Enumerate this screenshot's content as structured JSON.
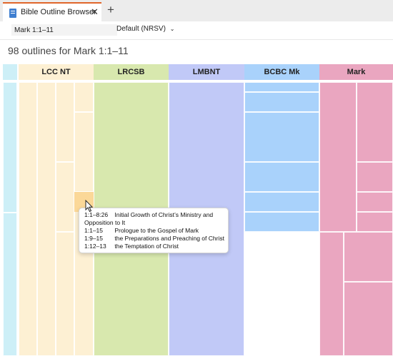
{
  "tabs": {
    "title": "Bible Outline Browser",
    "close_icon": "close-icon",
    "add_icon": "plus-icon",
    "accent": "#e0662a"
  },
  "toolbar": {
    "reference_value": "Mark 1:1–11",
    "version_value": "Default (NRSV)"
  },
  "heading": "98 outlines for Mark 1:1–11",
  "columns": [
    {
      "label": "",
      "color": "#cdeff7"
    },
    {
      "label": "LCC NT",
      "color": "#fdf0d3"
    },
    {
      "label": "LRCSB",
      "color": "#d8e8ae"
    },
    {
      "label": "LMBNT",
      "color": "#c1c9f7"
    },
    {
      "label": "BCBC Mk",
      "color": "#a9d2fb"
    },
    {
      "label": "Mark",
      "color": "#eaa6c0"
    }
  ],
  "tooltip": {
    "rows": [
      {
        "ref": "1:1–8:26",
        "text": "Initial Growth of Christ’s Ministry and Opposition to It"
      },
      {
        "ref": "1:1–15",
        "text": "Prologue to the Gospel of Mark"
      },
      {
        "ref": "1:9–15",
        "text": "the Preparations and Preaching of Christ"
      },
      {
        "ref": "1:12–13",
        "text": "the Temptation of Christ"
      }
    ]
  }
}
